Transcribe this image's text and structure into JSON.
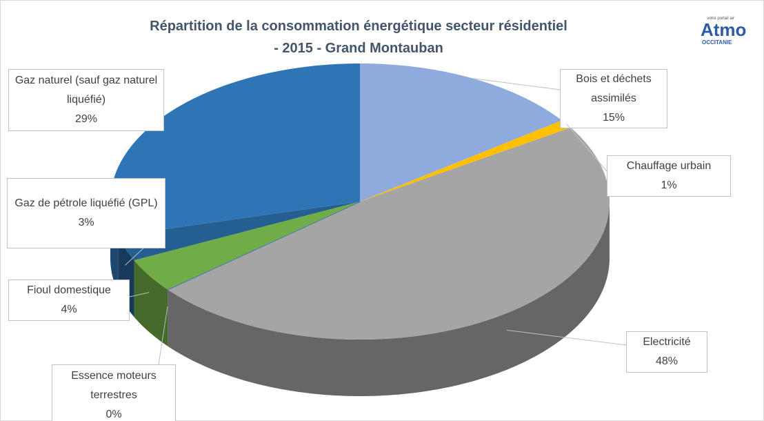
{
  "chart_data": {
    "type": "pie3d",
    "title": [
      "Répartition de la consommation énergétique secteur résidentiel",
      "- 2015 - Grand Montauban"
    ],
    "logo": {
      "name": "Atmo",
      "tagline": "votre portail air",
      "region": "OCCITANIE"
    },
    "categories": [
      "Bois et déchets assimilés",
      "Chauffage urbain",
      "Electricité",
      "Essence moteurs terrestres",
      "Fioul domestique",
      "Gaz de pétrole liquéfié (GPL)",
      "Gaz naturel (sauf gaz naturel liquéfié)"
    ],
    "values": [
      15,
      1,
      48,
      0,
      4,
      3,
      29
    ],
    "value_labels": [
      "15%",
      "1%",
      "48%",
      "0%",
      "4%",
      "3%",
      "29%"
    ],
    "colors": [
      "#8faadc",
      "#ffc000",
      "#a5a5a5",
      "#4472c4",
      "#70ad47",
      "#255e91",
      "#2e75b6"
    ]
  }
}
